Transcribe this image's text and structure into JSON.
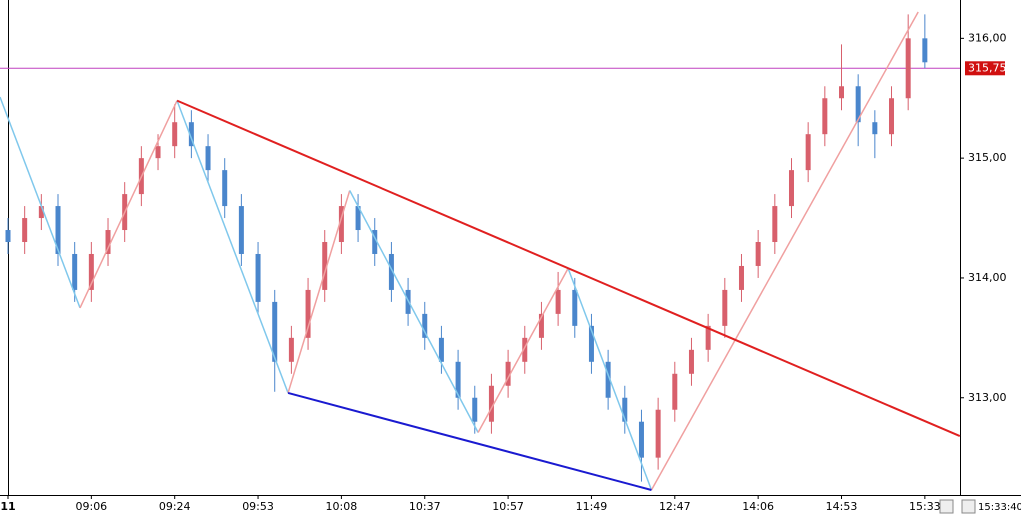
{
  "chart_data": {
    "type": "candlestick",
    "categories": [
      "11",
      null,
      null,
      null,
      null,
      "09:06",
      null,
      null,
      null,
      null,
      "09:24",
      null,
      null,
      null,
      null,
      "09:53",
      null,
      null,
      null,
      null,
      "10:08",
      null,
      null,
      null,
      null,
      "10:37",
      null,
      null,
      null,
      null,
      "10:57",
      null,
      null,
      null,
      null,
      "11:49",
      null,
      null,
      null,
      null,
      "12:47",
      null,
      null,
      null,
      null,
      "14:06",
      null,
      null,
      null,
      null,
      "14:53",
      null,
      null,
      null,
      null,
      "15:33"
    ],
    "open": [
      314.4,
      314.3,
      314.5,
      314.6,
      314.2,
      313.9,
      314.2,
      314.4,
      314.7,
      315.0,
      315.1,
      315.3,
      315.1,
      314.9,
      314.6,
      314.2,
      313.8,
      313.3,
      313.5,
      313.9,
      314.3,
      314.6,
      314.4,
      314.2,
      313.9,
      313.7,
      313.5,
      313.3,
      313.0,
      312.8,
      313.1,
      313.3,
      313.5,
      313.7,
      313.9,
      313.6,
      313.3,
      313.0,
      312.8,
      312.5,
      312.9,
      313.2,
      313.4,
      313.6,
      313.9,
      314.1,
      314.3,
      314.6,
      314.9,
      315.2,
      315.5,
      315.6,
      315.3,
      315.2,
      315.5,
      316.0
    ],
    "high": [
      314.5,
      314.6,
      314.7,
      314.7,
      314.3,
      314.3,
      314.5,
      314.8,
      315.1,
      315.2,
      315.45,
      315.4,
      315.2,
      315.0,
      314.7,
      314.3,
      313.9,
      313.6,
      314.0,
      314.4,
      314.7,
      314.7,
      314.5,
      314.3,
      314.0,
      313.8,
      313.6,
      313.4,
      313.1,
      313.2,
      313.4,
      313.6,
      313.8,
      314.05,
      314.0,
      313.7,
      313.4,
      313.1,
      312.9,
      313.0,
      313.3,
      313.5,
      313.7,
      314.0,
      314.2,
      314.4,
      314.7,
      315.0,
      315.3,
      315.6,
      315.95,
      315.7,
      315.4,
      315.6,
      316.2,
      316.2
    ],
    "low": [
      314.2,
      314.2,
      314.4,
      314.1,
      313.8,
      313.8,
      314.1,
      314.3,
      314.6,
      314.9,
      315.0,
      315.0,
      314.8,
      314.5,
      314.1,
      313.7,
      313.05,
      313.2,
      313.4,
      313.8,
      314.2,
      314.3,
      314.1,
      313.8,
      313.6,
      313.4,
      313.2,
      312.9,
      312.7,
      312.7,
      313.0,
      313.2,
      313.4,
      313.6,
      313.5,
      313.2,
      312.9,
      312.7,
      312.3,
      312.4,
      312.8,
      313.1,
      313.3,
      313.5,
      313.8,
      314.0,
      314.2,
      314.5,
      314.8,
      315.1,
      315.4,
      315.1,
      315.0,
      315.1,
      315.4,
      315.75
    ],
    "close": [
      314.3,
      314.5,
      314.6,
      314.2,
      313.9,
      314.2,
      314.4,
      314.7,
      315.0,
      315.1,
      315.3,
      315.1,
      314.9,
      314.6,
      314.2,
      313.8,
      313.3,
      313.5,
      313.9,
      314.3,
      314.6,
      314.4,
      314.2,
      313.9,
      313.7,
      313.5,
      313.3,
      313.0,
      312.8,
      313.1,
      313.3,
      313.5,
      313.7,
      313.9,
      313.6,
      313.3,
      313.0,
      312.8,
      312.5,
      312.9,
      313.2,
      313.4,
      313.6,
      313.9,
      314.1,
      314.3,
      314.6,
      314.9,
      315.2,
      315.5,
      315.6,
      315.3,
      315.2,
      315.5,
      316.0,
      315.8
    ],
    "up_color": "#d8606c",
    "down_color": "#4a86cc",
    "ylim": [
      312.23,
      316.32
    ],
    "yticks": [
      {
        "value": 313,
        "label": "313,00"
      },
      {
        "value": 314,
        "label": "314,00"
      },
      {
        "value": 315,
        "label": "315,00"
      },
      {
        "value": 316,
        "label": "316,00"
      }
    ],
    "price_line": {
      "value": 315.75,
      "label": "315,75",
      "color": "#c040c0",
      "label_color": "#d01010"
    },
    "lines": [
      {
        "color": "#e02020",
        "points": [
          [
            10.14,
            315.48
          ],
          [
            57.1,
            312.68
          ]
        ]
      },
      {
        "color": "#1a1ad0",
        "points": [
          [
            16.8,
            313.04
          ],
          [
            38.6,
            312.23
          ]
        ]
      }
    ],
    "zigzag": {
      "up_color": "#f0a0a0",
      "down_color": "#80c8ec",
      "points": [
        [
          -0.48,
          315.51
        ],
        [
          4.32,
          313.75
        ],
        [
          10.14,
          315.48
        ],
        [
          16.8,
          313.04
        ],
        [
          20.5,
          314.73
        ],
        [
          28.2,
          312.71
        ],
        [
          33.6,
          314.08
        ],
        [
          38.6,
          312.23
        ],
        [
          54.6,
          316.22
        ]
      ]
    },
    "clock": "15:33:40"
  }
}
